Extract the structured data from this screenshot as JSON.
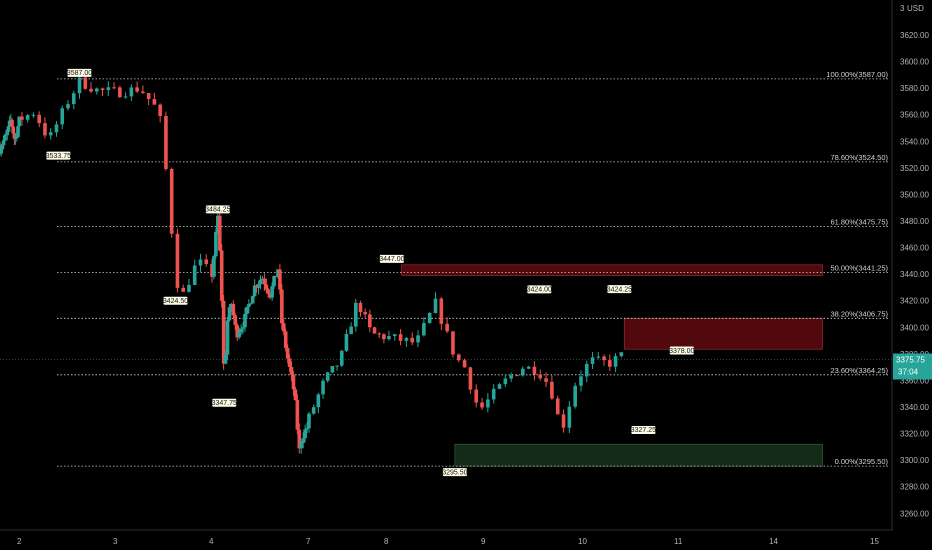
{
  "header": {
    "scale_value": "3",
    "currency": "USD"
  },
  "colors": {
    "background": "#000000",
    "up": "#26a69a",
    "down": "#ef5350",
    "grid": "#d1d4dc",
    "label_bg": "#fffde7",
    "resistance_zone": "#5b0a10",
    "support_zone": "#16311a",
    "price_tag": "#26a69a"
  },
  "price_tag": {
    "price": "3375.75",
    "countdown": "37:04"
  },
  "chart_data": {
    "type": "candlestick",
    "x_tick_labels": [
      "2",
      "3",
      "4",
      "7",
      "8",
      "9",
      "10",
      "11",
      "14",
      "15"
    ],
    "ylim": [
      3250,
      3640
    ],
    "y_ticks": [
      "3260.00",
      "3280.00",
      "3300.00",
      "3320.00",
      "3340.00",
      "3360.00",
      "3380.00",
      "3400.00",
      "3420.00",
      "3440.00",
      "3460.00",
      "3480.00",
      "3500.00",
      "3520.00",
      "3540.00",
      "3560.00",
      "3580.00",
      "3600.00",
      "3620.00"
    ],
    "fib_levels": [
      {
        "price": 3587.0,
        "label": "100.00%(3587.00)"
      },
      {
        "price": 3524.5,
        "label": "78.60%(3524.50)"
      },
      {
        "price": 3475.75,
        "label": "61.80%(3475.75)"
      },
      {
        "price": 3441.25,
        "label": "50.00%(3441.25)"
      },
      {
        "price": 3406.75,
        "label": "38.20%(3406.75)"
      },
      {
        "price": 3364.25,
        "label": "23.60%(3364.25)"
      },
      {
        "price": 3295.5,
        "label": "0.00%(3295.50)"
      }
    ],
    "zones": [
      {
        "kind": "resistance",
        "x_start": 8.15,
        "x_end": 14.5,
        "top": 3447.0,
        "bottom": 3439.0
      },
      {
        "kind": "resistance",
        "x_start": 10.45,
        "x_end": 14.5,
        "top": 3406.75,
        "bottom": 3383.5
      },
      {
        "kind": "support",
        "x_start": 8.7,
        "x_end": 14.5,
        "top": 3312.0,
        "bottom": 3295.5
      }
    ],
    "pivot_labels": [
      {
        "x": 2.62,
        "price": 3587.0,
        "text": "3587.00",
        "pos": "above"
      },
      {
        "x": 2.4,
        "price": 3533.75,
        "text": "3533.75",
        "pos": "below"
      },
      {
        "x": 4.18,
        "price": 3484.25,
        "text": "3484.25",
        "pos": "above"
      },
      {
        "x": 3.62,
        "price": 3424.5,
        "text": "3424.50",
        "pos": "below"
      },
      {
        "x": 4.38,
        "price": 3347.75,
        "text": "3347.75",
        "pos": "below"
      },
      {
        "x": 8.05,
        "price": 3447.0,
        "text": "3447.00",
        "pos": "above"
      },
      {
        "x": 8.7,
        "price": 3295.5,
        "text": "3295.50",
        "pos": "below"
      },
      {
        "x": 9.57,
        "price": 3424.0,
        "text": "3424.00",
        "pos": "above"
      },
      {
        "x": 10.4,
        "price": 3424.25,
        "text": "3424.25",
        "pos": "above"
      },
      {
        "x": 10.65,
        "price": 3327.25,
        "text": "3327.25",
        "pos": "below"
      },
      {
        "x": 11.15,
        "price": 3378.0,
        "text": "3378.00",
        "pos": "above"
      }
    ],
    "path": [
      [
        1.0,
        3535
      ],
      [
        1.35,
        3545
      ],
      [
        1.55,
        3556
      ],
      [
        1.75,
        3540
      ],
      [
        1.95,
        3555
      ],
      [
        2.15,
        3562
      ],
      [
        2.3,
        3541
      ],
      [
        2.5,
        3570
      ],
      [
        2.62,
        3585
      ],
      [
        2.82,
        3578
      ],
      [
        3.05,
        3577
      ],
      [
        3.25,
        3580
      ],
      [
        3.45,
        3562
      ],
      [
        3.55,
        3500
      ],
      [
        3.62,
        3436
      ],
      [
        3.7,
        3425
      ],
      [
        3.85,
        3450
      ],
      [
        4.0,
        3440
      ],
      [
        4.18,
        3483
      ],
      [
        4.28,
        3438
      ],
      [
        4.38,
        3355
      ],
      [
        4.45,
        3402
      ],
      [
        4.6,
        3418
      ],
      [
        4.75,
        3395
      ],
      [
        5.0,
        3405
      ],
      [
        5.3,
        3430
      ],
      [
        5.55,
        3438
      ],
      [
        5.8,
        3425
      ],
      [
        6.05,
        3445
      ],
      [
        6.15,
        3405
      ],
      [
        6.35,
        3375
      ],
      [
        6.55,
        3350
      ],
      [
        6.7,
        3307
      ],
      [
        6.78,
        3318
      ],
      [
        6.95,
        3325
      ],
      [
        7.2,
        3360
      ],
      [
        7.4,
        3375
      ],
      [
        7.62,
        3420
      ],
      [
        7.8,
        3395
      ],
      [
        8.05,
        3392
      ],
      [
        8.3,
        3388
      ],
      [
        8.5,
        3418
      ],
      [
        8.6,
        3398
      ],
      [
        8.7,
        3378
      ],
      [
        8.8,
        3370
      ],
      [
        8.95,
        3337
      ],
      [
        9.1,
        3350
      ],
      [
        9.25,
        3362
      ],
      [
        9.4,
        3370
      ],
      [
        9.55,
        3368
      ],
      [
        9.68,
        3356
      ],
      [
        9.8,
        3322
      ],
      [
        9.95,
        3360
      ],
      [
        10.1,
        3375
      ],
      [
        10.3,
        3373
      ],
      [
        10.45,
        3380
      ]
    ]
  }
}
